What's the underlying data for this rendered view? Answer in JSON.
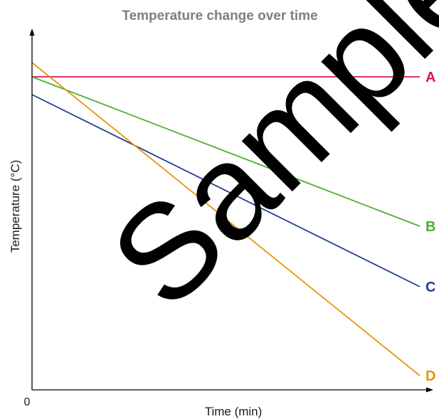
{
  "chart_data": {
    "type": "line",
    "title": "Temperature change over time",
    "xlabel": "Time (min)",
    "ylabel": "Temperature (°C)",
    "origin_label": "0",
    "xlim": [
      0,
      100
    ],
    "ylim": [
      0,
      100
    ],
    "grid": false,
    "series": [
      {
        "name": "A",
        "color": "#d6175a",
        "x": [
          0,
          100
        ],
        "y": [
          88,
          88
        ]
      },
      {
        "name": "B",
        "color": "#4caf2f",
        "x": [
          0,
          100
        ],
        "y": [
          88,
          46
        ]
      },
      {
        "name": "C",
        "color": "#1f3f94",
        "x": [
          0,
          100
        ],
        "y": [
          83,
          29
        ]
      },
      {
        "name": "D",
        "color": "#e8940c",
        "x": [
          0,
          100
        ],
        "y": [
          92,
          4
        ]
      }
    ]
  },
  "watermark": "Sample"
}
